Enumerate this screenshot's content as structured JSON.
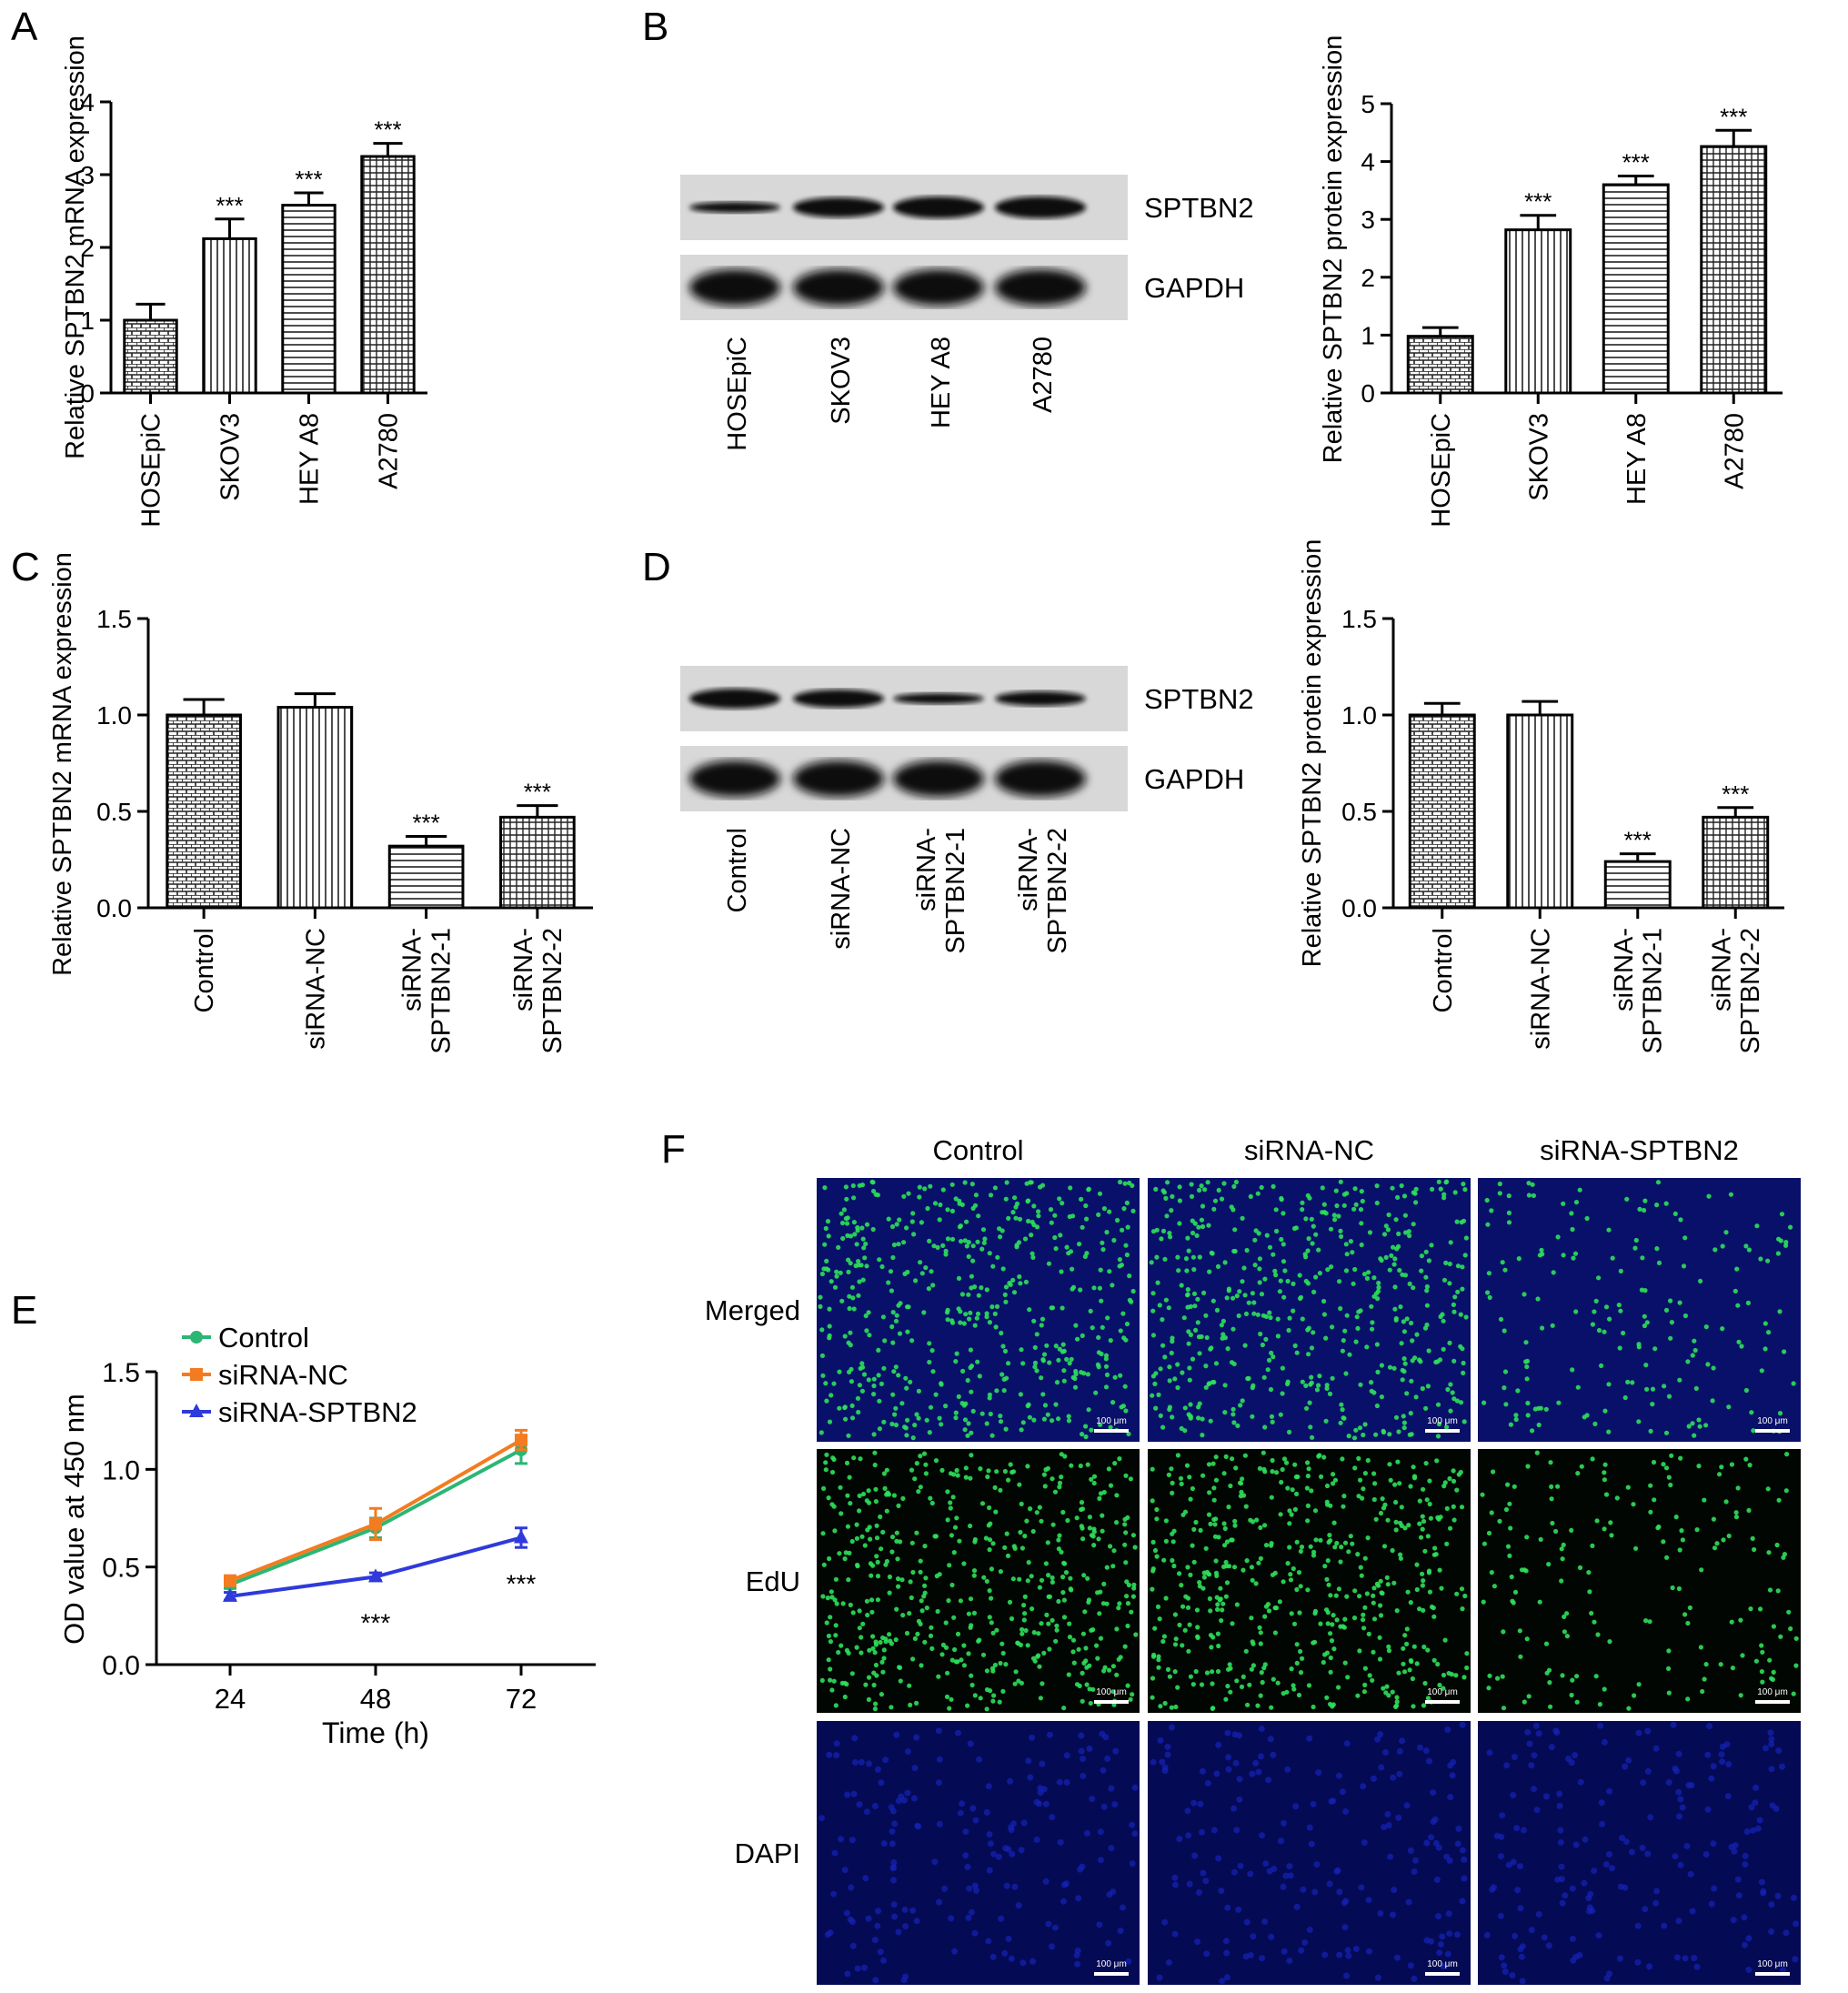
{
  "panels": {
    "A": {
      "letter": "A"
    },
    "B": {
      "letter": "B",
      "blot_labels": [
        "SPTBN2",
        "GAPDH"
      ],
      "lanes": [
        "HOSEpiC",
        "SKOV3",
        "HEY A8",
        "A2780"
      ]
    },
    "C": {
      "letter": "C"
    },
    "D": {
      "letter": "D",
      "blot_labels": [
        "SPTBN2",
        "GAPDH"
      ],
      "lanes": [
        "Control",
        "siRNA-NC",
        "siRNA-\nSPTBN2-1",
        "siRNA-\nSPTBN2-2"
      ]
    },
    "E": {
      "letter": "E"
    },
    "F": {
      "letter": "F",
      "columns": [
        "Control",
        "siRNA-NC",
        "siRNA-SPTBN2"
      ],
      "rows": [
        "Merged",
        "EdU",
        "DAPI"
      ],
      "scale_bar": "100 μm"
    }
  },
  "colors": {
    "control": "#2bb673",
    "nc": "#f47b20",
    "sptbn2": "#2e3adb",
    "dapi": "#1622b8",
    "edu": "#2de05a"
  },
  "chart_data": [
    {
      "panel": "A",
      "type": "bar",
      "categories": [
        "HOSEpiC",
        "SKOV3",
        "HEY A8",
        "A2780"
      ],
      "values": [
        1.0,
        2.12,
        2.58,
        3.25
      ],
      "errors": [
        0.22,
        0.27,
        0.17,
        0.18
      ],
      "annotations": [
        "",
        "***",
        "***",
        "***"
      ],
      "patterns": [
        "brick",
        "vlines",
        "hlines",
        "grid"
      ],
      "ylabel": "Relative SPTBN2 mRNA expression",
      "ylim": [
        0,
        4
      ],
      "yticks": [
        "0",
        "1",
        "2",
        "3",
        "4"
      ]
    },
    {
      "panel": "B",
      "type": "bar",
      "categories": [
        "HOSEpiC",
        "SKOV3",
        "HEY A8",
        "A2780"
      ],
      "values": [
        0.98,
        2.82,
        3.6,
        4.26
      ],
      "errors": [
        0.15,
        0.25,
        0.15,
        0.28
      ],
      "annotations": [
        "",
        "***",
        "***",
        "***"
      ],
      "patterns": [
        "brick",
        "vlines",
        "hlines",
        "grid"
      ],
      "ylabel": "Relative SPTBN2 protein expression",
      "ylim": [
        0,
        5
      ],
      "yticks": [
        "0",
        "1",
        "2",
        "3",
        "4",
        "5"
      ]
    },
    {
      "panel": "C",
      "type": "bar",
      "categories": [
        "Control",
        "siRNA-NC",
        "siRNA-\nSPTBN2-1",
        "siRNA-\nSPTBN2-2"
      ],
      "values": [
        1.0,
        1.04,
        0.32,
        0.47
      ],
      "errors": [
        0.08,
        0.07,
        0.05,
        0.06
      ],
      "annotations": [
        "",
        "",
        "***",
        "***"
      ],
      "patterns": [
        "brick",
        "vlines",
        "hlines",
        "grid"
      ],
      "ylabel": "Relative SPTBN2 mRNA expression",
      "ylim": [
        0,
        1.5
      ],
      "yticks": [
        "0.0",
        "0.5",
        "1.0",
        "1.5"
      ]
    },
    {
      "panel": "D",
      "type": "bar",
      "categories": [
        "Control",
        "siRNA-NC",
        "siRNA-\nSPTBN2-1",
        "siRNA-\nSPTBN2-2"
      ],
      "values": [
        1.0,
        1.0,
        0.24,
        0.47
      ],
      "errors": [
        0.06,
        0.07,
        0.04,
        0.05
      ],
      "annotations": [
        "",
        "",
        "***",
        "***"
      ],
      "patterns": [
        "brick",
        "vlines",
        "hlines",
        "grid"
      ],
      "ylabel": "Relative SPTBN2 protein expression",
      "ylim": [
        0,
        1.5
      ],
      "yticks": [
        "0.0",
        "0.5",
        "1.0",
        "1.5"
      ]
    },
    {
      "panel": "E",
      "type": "line",
      "x": [
        24,
        48,
        72
      ],
      "xticks": [
        "24",
        "48",
        "72"
      ],
      "xlabel": "Time (h)",
      "ylabel": "OD value at 450 nm",
      "ylim": [
        0,
        1.5
      ],
      "yticks": [
        "0.0",
        "0.5",
        "1.0",
        "1.5"
      ],
      "legend_position": "top-left",
      "series": [
        {
          "name": "Control",
          "values": [
            0.41,
            0.7,
            1.1
          ],
          "errors": [
            0.02,
            0.05,
            0.07
          ],
          "marker": "circle"
        },
        {
          "name": "siRNA-NC",
          "values": [
            0.43,
            0.72,
            1.15
          ],
          "errors": [
            0.02,
            0.08,
            0.05
          ],
          "marker": "square"
        },
        {
          "name": "siRNA-SPTBN2",
          "values": [
            0.35,
            0.45,
            0.65
          ],
          "errors": [
            0.02,
            0.02,
            0.05
          ],
          "marker": "triangle"
        }
      ],
      "annotations": [
        {
          "x": 48,
          "text": "***"
        },
        {
          "x": 72,
          "text": "***"
        }
      ]
    }
  ]
}
